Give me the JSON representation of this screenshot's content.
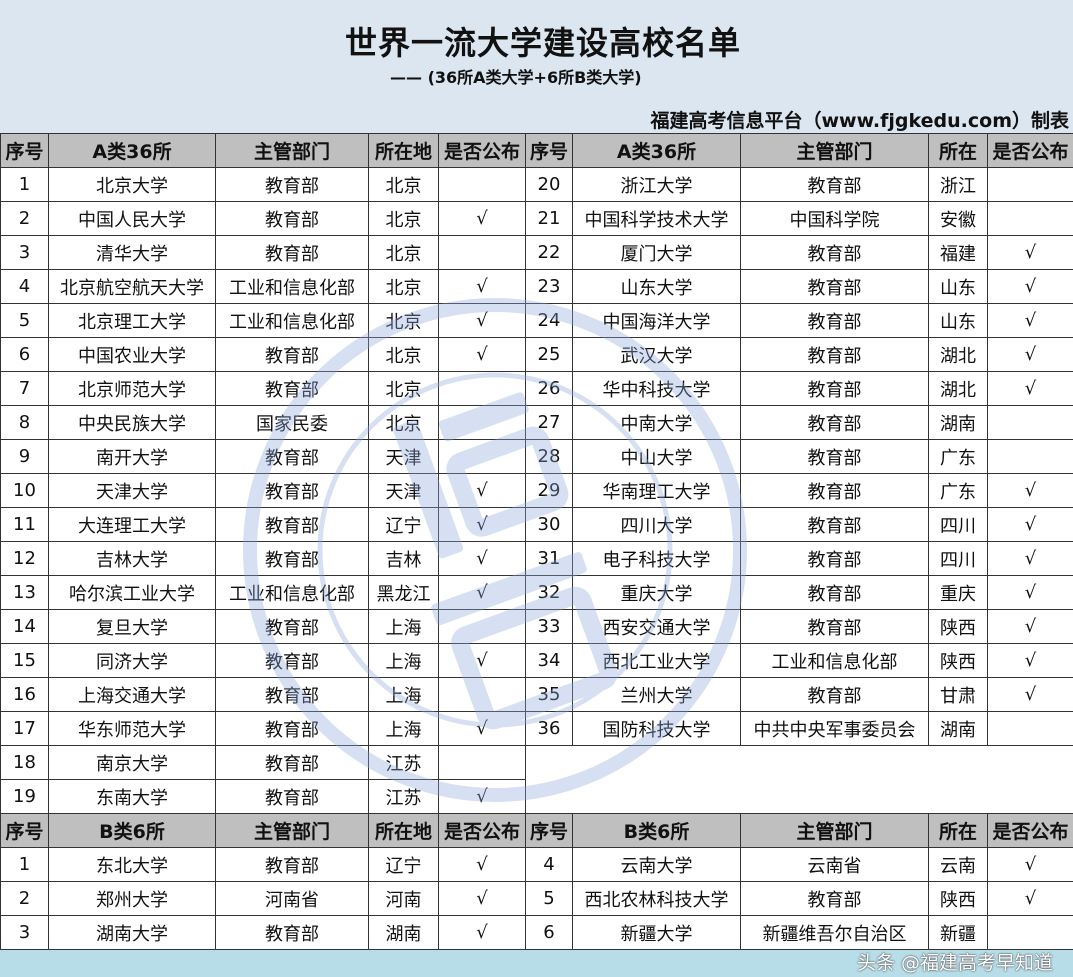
{
  "header": {
    "title": "世界一流大学建设高校名单",
    "subtitle": "—— (36所A类大学+6所B类大学)",
    "credit": "福建高考信息平台（www.fjgkedu.com）制表"
  },
  "a_headers": {
    "left": [
      "序号",
      "A类36所",
      "主管部门",
      "所在地",
      "是否公布"
    ],
    "right": [
      "序号",
      "A类36所",
      "主管部门",
      "所在",
      "是否公布"
    ]
  },
  "a_rows_left": [
    [
      "1",
      "北京大学",
      "教育部",
      "北京",
      ""
    ],
    [
      "2",
      "中国人民大学",
      "教育部",
      "北京",
      "√"
    ],
    [
      "3",
      "清华大学",
      "教育部",
      "北京",
      ""
    ],
    [
      "4",
      "北京航空航天大学",
      "工业和信息化部",
      "北京",
      "√"
    ],
    [
      "5",
      "北京理工大学",
      "工业和信息化部",
      "北京",
      "√"
    ],
    [
      "6",
      "中国农业大学",
      "教育部",
      "北京",
      "√"
    ],
    [
      "7",
      "北京师范大学",
      "教育部",
      "北京",
      ""
    ],
    [
      "8",
      "中央民族大学",
      "国家民委",
      "北京",
      ""
    ],
    [
      "9",
      "南开大学",
      "教育部",
      "天津",
      ""
    ],
    [
      "10",
      "天津大学",
      "教育部",
      "天津",
      "√"
    ],
    [
      "11",
      "大连理工大学",
      "教育部",
      "辽宁",
      "√"
    ],
    [
      "12",
      "吉林大学",
      "教育部",
      "吉林",
      "√"
    ],
    [
      "13",
      "哈尔滨工业大学",
      "工业和信息化部",
      "黑龙江",
      "√"
    ],
    [
      "14",
      "复旦大学",
      "教育部",
      "上海",
      ""
    ],
    [
      "15",
      "同济大学",
      "教育部",
      "上海",
      "√"
    ],
    [
      "16",
      "上海交通大学",
      "教育部",
      "上海",
      ""
    ],
    [
      "17",
      "华东师范大学",
      "教育部",
      "上海",
      "√"
    ],
    [
      "18",
      "南京大学",
      "教育部",
      "江苏",
      ""
    ],
    [
      "19",
      "东南大学",
      "教育部",
      "江苏",
      "√"
    ]
  ],
  "a_rows_right": [
    [
      "20",
      "浙江大学",
      "教育部",
      "浙江",
      ""
    ],
    [
      "21",
      "中国科学技术大学",
      "中国科学院",
      "安徽",
      ""
    ],
    [
      "22",
      "厦门大学",
      "教育部",
      "福建",
      "√"
    ],
    [
      "23",
      "山东大学",
      "教育部",
      "山东",
      "√"
    ],
    [
      "24",
      "中国海洋大学",
      "教育部",
      "山东",
      "√"
    ],
    [
      "25",
      "武汉大学",
      "教育部",
      "湖北",
      "√"
    ],
    [
      "26",
      "华中科技大学",
      "教育部",
      "湖北",
      "√"
    ],
    [
      "27",
      "中南大学",
      "教育部",
      "湖南",
      ""
    ],
    [
      "28",
      "中山大学",
      "教育部",
      "广东",
      ""
    ],
    [
      "29",
      "华南理工大学",
      "教育部",
      "广东",
      "√"
    ],
    [
      "30",
      "四川大学",
      "教育部",
      "四川",
      "√"
    ],
    [
      "31",
      "电子科技大学",
      "教育部",
      "四川",
      "√"
    ],
    [
      "32",
      "重庆大学",
      "教育部",
      "重庆",
      "√"
    ],
    [
      "33",
      "西安交通大学",
      "教育部",
      "陕西",
      "√"
    ],
    [
      "34",
      "西北工业大学",
      "工业和信息化部",
      "陕西",
      "√"
    ],
    [
      "35",
      "兰州大学",
      "教育部",
      "甘肃",
      "√"
    ],
    [
      "36",
      "国防科技大学",
      "中共中央军事委员会",
      "湖南",
      ""
    ]
  ],
  "b_headers": {
    "left": [
      "序号",
      "B类6所",
      "主管部门",
      "所在地",
      "是否公布"
    ],
    "right": [
      "序号",
      "B类6所",
      "主管部门",
      "所在",
      "是否公布"
    ]
  },
  "b_rows_left": [
    [
      "1",
      "东北大学",
      "教育部",
      "辽宁",
      "√"
    ],
    [
      "2",
      "郑州大学",
      "河南省",
      "河南",
      "√"
    ],
    [
      "3",
      "湖南大学",
      "教育部",
      "湖南",
      "√"
    ]
  ],
  "b_rows_right": [
    [
      "4",
      "云南大学",
      "云南省",
      "云南",
      "√"
    ],
    [
      "5",
      "西北农林科技大学",
      "教育部",
      "陕西",
      "√"
    ],
    [
      "6",
      "新疆大学",
      "新疆维吾尔自治区",
      "新疆",
      ""
    ]
  ],
  "watermark": {
    "stamp_text": "福建高考",
    "url": "fjgkedu",
    "overlay": "头条 @福建高考早知道",
    "color": "#8ea9db"
  },
  "colors": {
    "title_bg": "#dce6f1",
    "header_bg": "#bfbfbf",
    "footer_bg": "#b7dde8"
  }
}
